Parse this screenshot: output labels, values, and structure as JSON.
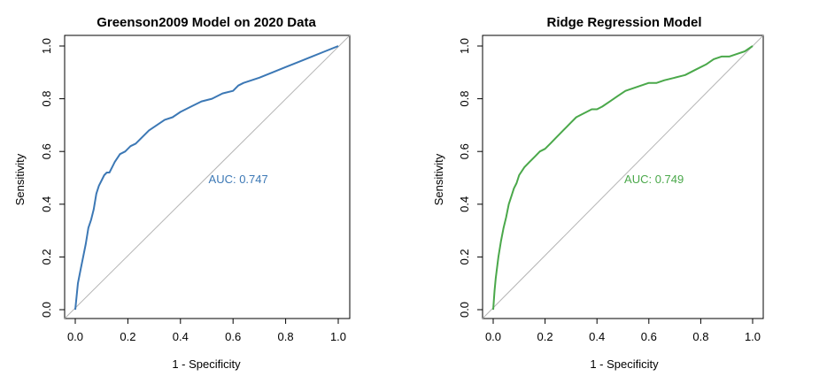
{
  "chart_data": [
    {
      "type": "line",
      "title": "Greenson2009 Model on 2020 Data",
      "xlabel": "1 - Specificity",
      "ylabel": "Sensitivity",
      "xlim": [
        0,
        1
      ],
      "ylim": [
        0,
        1
      ],
      "xticks": [
        "0.0",
        "0.2",
        "0.4",
        "0.6",
        "0.8",
        "1.0"
      ],
      "yticks": [
        "0.0",
        "0.2",
        "0.4",
        "0.6",
        "0.8",
        "1.0"
      ],
      "grid": false,
      "reference_line": "diagonal",
      "annotation": {
        "text": "AUC: 0.747",
        "x": 0.62,
        "y": 0.48
      },
      "color": "#3c78b5",
      "series": [
        {
          "x": [
            0.0,
            0.01,
            0.02,
            0.03,
            0.04,
            0.05,
            0.06,
            0.07,
            0.08,
            0.09,
            0.1,
            0.11,
            0.12,
            0.13,
            0.14,
            0.15,
            0.17,
            0.19,
            0.21,
            0.23,
            0.25,
            0.28,
            0.31,
            0.34,
            0.37,
            0.4,
            0.44,
            0.48,
            0.52,
            0.56,
            0.6,
            0.62,
            0.64,
            0.7,
            0.75,
            0.8,
            0.85,
            0.9,
            0.95,
            1.0
          ],
          "y": [
            0.0,
            0.1,
            0.15,
            0.2,
            0.25,
            0.31,
            0.34,
            0.38,
            0.44,
            0.47,
            0.49,
            0.51,
            0.52,
            0.52,
            0.54,
            0.56,
            0.59,
            0.6,
            0.62,
            0.63,
            0.65,
            0.68,
            0.7,
            0.72,
            0.73,
            0.75,
            0.77,
            0.79,
            0.8,
            0.82,
            0.83,
            0.85,
            0.86,
            0.88,
            0.9,
            0.92,
            0.94,
            0.96,
            0.98,
            1.0
          ]
        }
      ]
    },
    {
      "type": "line",
      "title": "Ridge Regression Model",
      "xlabel": "1 - Specificity",
      "ylabel": "Sensitivity",
      "xlim": [
        0,
        1
      ],
      "ylim": [
        0,
        1
      ],
      "xticks": [
        "0.0",
        "0.2",
        "0.4",
        "0.6",
        "0.8",
        "1.0"
      ],
      "yticks": [
        "0.0",
        "0.2",
        "0.4",
        "0.6",
        "0.8",
        "1.0"
      ],
      "grid": false,
      "reference_line": "diagonal",
      "annotation": {
        "text": "AUC: 0.749",
        "x": 0.62,
        "y": 0.48
      },
      "color": "#4aa84a",
      "series": [
        {
          "x": [
            0.0,
            0.005,
            0.01,
            0.015,
            0.02,
            0.03,
            0.04,
            0.05,
            0.06,
            0.07,
            0.08,
            0.09,
            0.1,
            0.12,
            0.14,
            0.16,
            0.18,
            0.2,
            0.22,
            0.24,
            0.26,
            0.28,
            0.3,
            0.32,
            0.34,
            0.36,
            0.38,
            0.4,
            0.42,
            0.45,
            0.48,
            0.51,
            0.54,
            0.57,
            0.6,
            0.63,
            0.66,
            0.7,
            0.74,
            0.78,
            0.82,
            0.85,
            0.88,
            0.91,
            0.94,
            0.97,
            1.0
          ],
          "y": [
            0.0,
            0.07,
            0.12,
            0.16,
            0.2,
            0.26,
            0.31,
            0.35,
            0.4,
            0.43,
            0.46,
            0.48,
            0.51,
            0.54,
            0.56,
            0.58,
            0.6,
            0.61,
            0.63,
            0.65,
            0.67,
            0.69,
            0.71,
            0.73,
            0.74,
            0.75,
            0.76,
            0.76,
            0.77,
            0.79,
            0.81,
            0.83,
            0.84,
            0.85,
            0.86,
            0.86,
            0.87,
            0.88,
            0.89,
            0.91,
            0.93,
            0.95,
            0.96,
            0.96,
            0.97,
            0.98,
            1.0
          ]
        }
      ]
    }
  ]
}
